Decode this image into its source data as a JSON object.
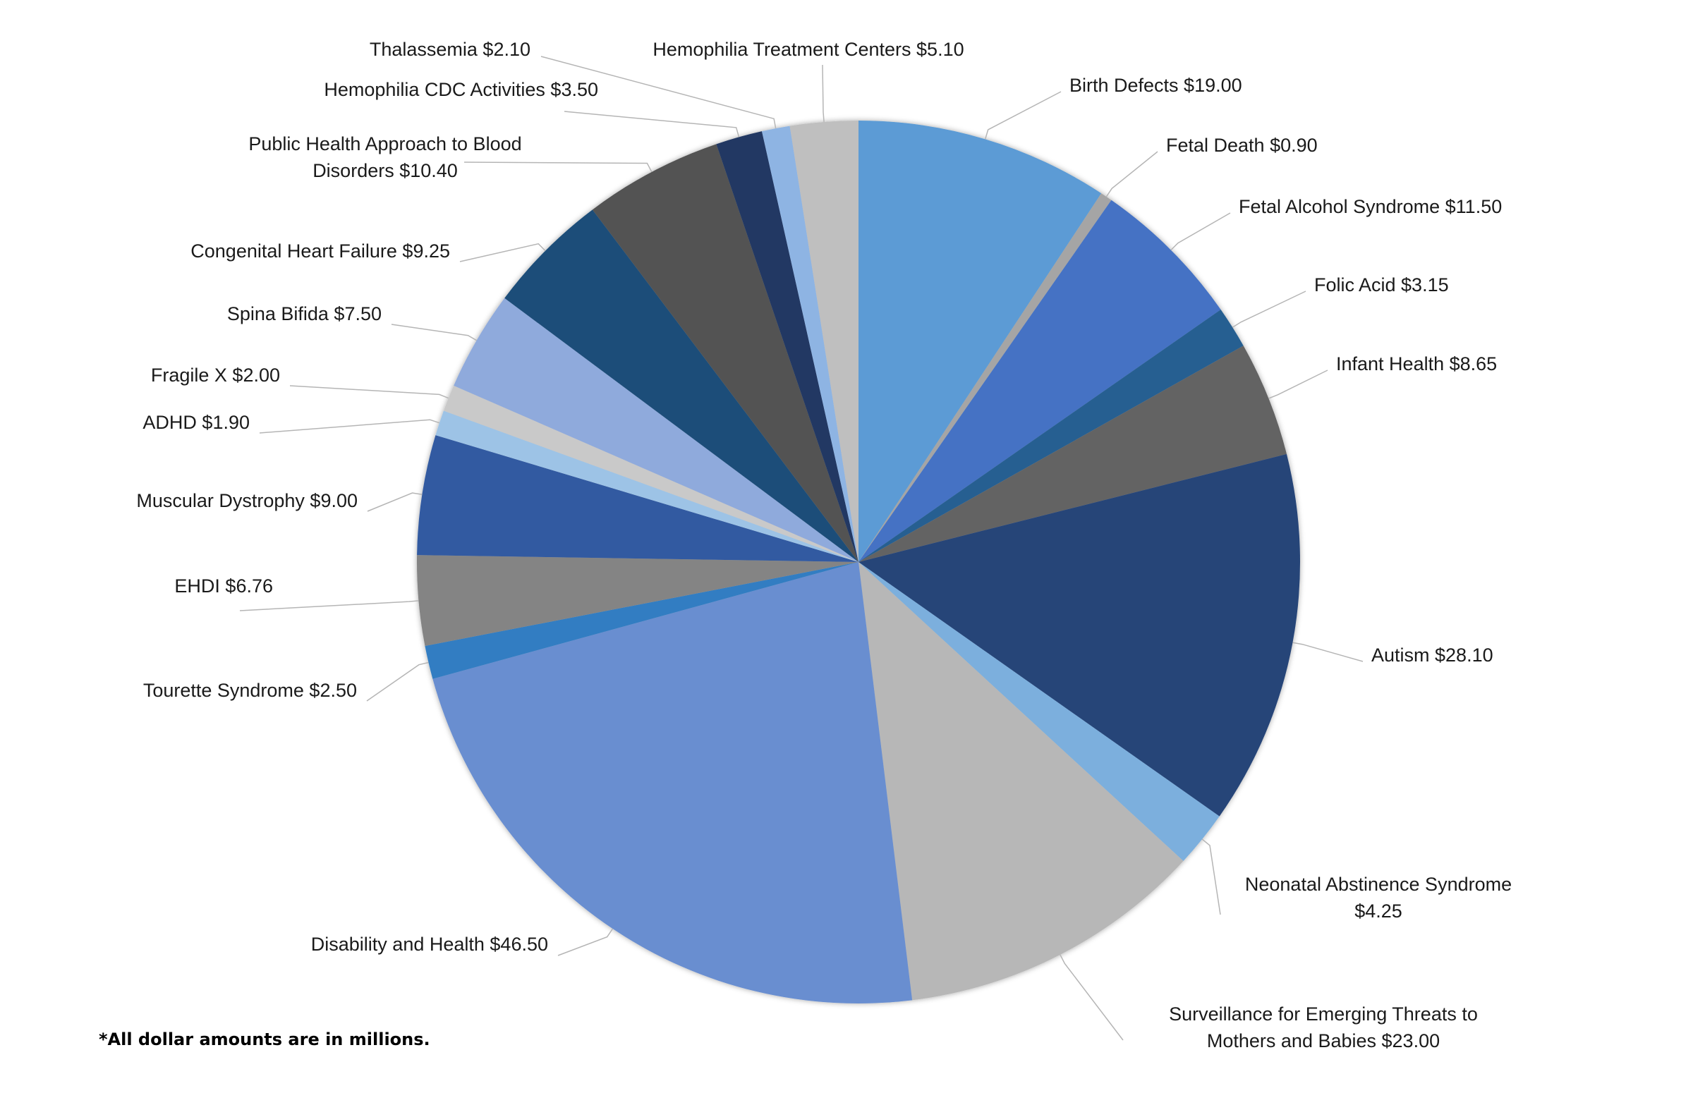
{
  "footnote": "*All dollar amounts are in millions.",
  "chart_data": {
    "type": "pie",
    "start": "12 o'clock, clockwise",
    "slices": [
      {
        "label": "Birth Defects $19.00",
        "value": 19.0,
        "color": "#5B9BD5"
      },
      {
        "label": "Fetal Death $0.90",
        "value": 0.9,
        "color": "#A5A5A5"
      },
      {
        "label": "Fetal Alcohol Syndrome $11.50",
        "value": 11.5,
        "color": "#4472C4"
      },
      {
        "label": "Folic Acid $3.15",
        "value": 3.15,
        "color": "#255E91"
      },
      {
        "label": "Infant Health $8.65",
        "value": 8.65,
        "color": "#636363"
      },
      {
        "label": "Autism $28.10",
        "value": 28.1,
        "color": "#264478"
      },
      {
        "label": "Neonatal Abstinence Syndrome $4.25",
        "value": 4.25,
        "color": "#7CAFDD"
      },
      {
        "label": "Surveillance for Emerging Threats to Mothers and Babies $23.00",
        "value": 23.0,
        "color": "#B7B7B7"
      },
      {
        "label": "Disability and Health $46.50",
        "value": 46.5,
        "color": "#698ED0"
      },
      {
        "label": "Tourette Syndrome $2.50",
        "value": 2.5,
        "color": "#327DC2"
      },
      {
        "label": "EHDI $6.76",
        "value": 6.76,
        "color": "#848484"
      },
      {
        "label": "Muscular Dystrophy $9.00",
        "value": 9.0,
        "color": "#335AA1"
      },
      {
        "label": "ADHD $1.90",
        "value": 1.9,
        "color": "#9DC3E6"
      },
      {
        "label": "Fragile X $2.00",
        "value": 2.0,
        "color": "#C9C9C9"
      },
      {
        "label": "Spina Bifida $7.50",
        "value": 7.5,
        "color": "#8FAADC"
      },
      {
        "label": "Congenital Heart Failure $9.25",
        "value": 9.25,
        "color": "#1F4E79"
      },
      {
        "label": "Public Health Approach to Blood Disorders $10.40",
        "value": 10.4,
        "color": "#525252"
      },
      {
        "label": "Hemophilia CDC Activities $3.50",
        "value": 3.5,
        "color": "#203864"
      },
      {
        "label": "Thalassemia $2.10",
        "value": 2.1,
        "color": "#8EB4E3"
      },
      {
        "label": "Hemophilia Treatment Centers $5.10",
        "value": 5.1,
        "color": "#BFBFBF"
      }
    ]
  }
}
